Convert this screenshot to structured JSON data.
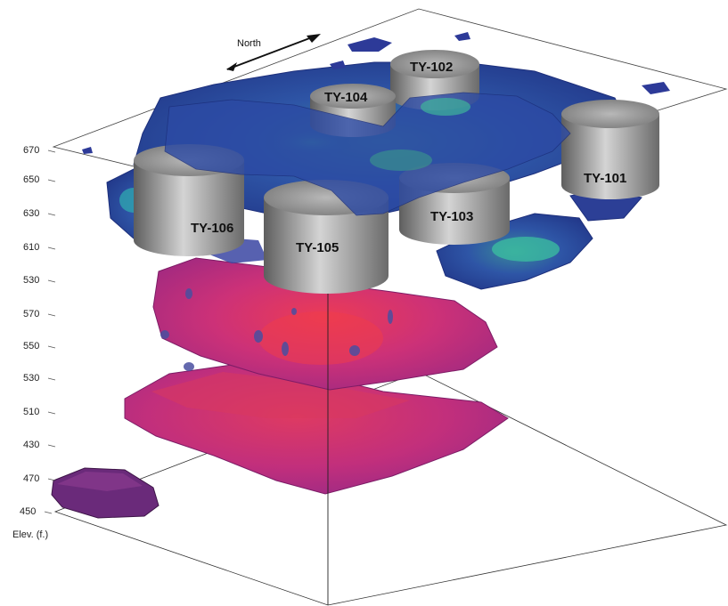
{
  "north_label": "North",
  "axis_title": "Elev. (f.)",
  "elevation_ticks": [
    "670",
    "650",
    "630",
    "610",
    "530",
    "570",
    "550",
    "530",
    "510",
    "430",
    "470",
    "450"
  ],
  "wells": [
    "TY-102",
    "TY-104",
    "TY-101",
    "TY-103",
    "TY-106",
    "TY-105"
  ],
  "colors": {
    "upper_body": "#2f4fa8",
    "upper_highlight": "#3a9a8a",
    "lower_body": "#c0307a",
    "lower_highlight": "#e83a5a",
    "small_body": "#6a2a7a",
    "well": "#9a9a9a"
  }
}
